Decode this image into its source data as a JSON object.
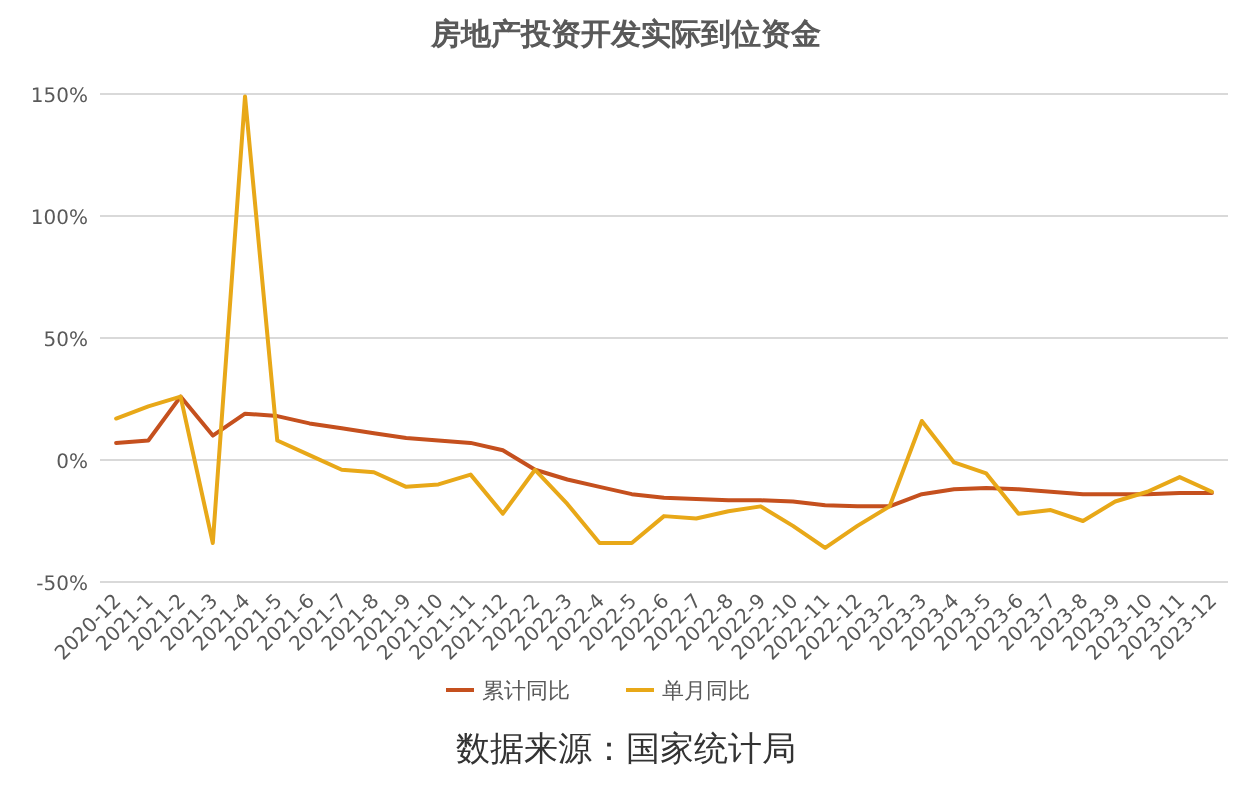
{
  "chart_data": {
    "type": "line",
    "title": "房地产投资开发实际到位资金",
    "categories": [
      "2020-12",
      "2021-1",
      "2021-2",
      "2021-3",
      "2021-4",
      "2021-5",
      "2021-6",
      "2021-7",
      "2021-8",
      "2021-9",
      "2021-10",
      "2021-11",
      "2021-12",
      "2022-2",
      "2022-3",
      "2022-4",
      "2022-5",
      "2022-6",
      "2022-7",
      "2022-8",
      "2022-9",
      "2022-10",
      "2022-11",
      "2022-12",
      "2023-2",
      "2023-3",
      "2023-4",
      "2023-5",
      "2023-6",
      "2023-7",
      "2023-8",
      "2023-9",
      "2023-10",
      "2023-11",
      "2023-12"
    ],
    "series": [
      {
        "name": "累计同比",
        "color": "#c5501e",
        "values": [
          7,
          8,
          26,
          10,
          19,
          18,
          15,
          13,
          11,
          9,
          8,
          7,
          4,
          -4,
          -8,
          -11,
          -14,
          -15.5,
          -16,
          -16.5,
          -16.5,
          -17,
          -18.5,
          -19,
          -19,
          -14,
          -12,
          -11.5,
          -12,
          -13,
          -14,
          -14,
          -14,
          -13.5,
          -13.5
        ]
      },
      {
        "name": "单月同比",
        "color": "#e8a818",
        "values": [
          17,
          22,
          26,
          -34,
          149,
          8,
          2,
          -4,
          -5,
          -11,
          -10,
          -6,
          -22,
          -4,
          -18,
          -34,
          -34,
          -23,
          -24,
          -21,
          -19,
          -27,
          -36,
          -27,
          -19,
          16,
          -1,
          -5.5,
          -22,
          -20.5,
          -25,
          -17,
          -13,
          -7,
          -13
        ]
      }
    ],
    "ylim": [
      -50,
      150
    ],
    "yticks": [
      {
        "value": -50,
        "label": "-50%"
      },
      {
        "value": 0,
        "label": "0%"
      },
      {
        "value": 50,
        "label": "50%"
      },
      {
        "value": 100,
        "label": "100%"
      },
      {
        "value": 150,
        "label": "150%"
      }
    ],
    "grid": "y",
    "legend": "bottom",
    "marker": "none",
    "line_style": "solid",
    "annotations": [
      "数据来源：国家统计局"
    ]
  }
}
